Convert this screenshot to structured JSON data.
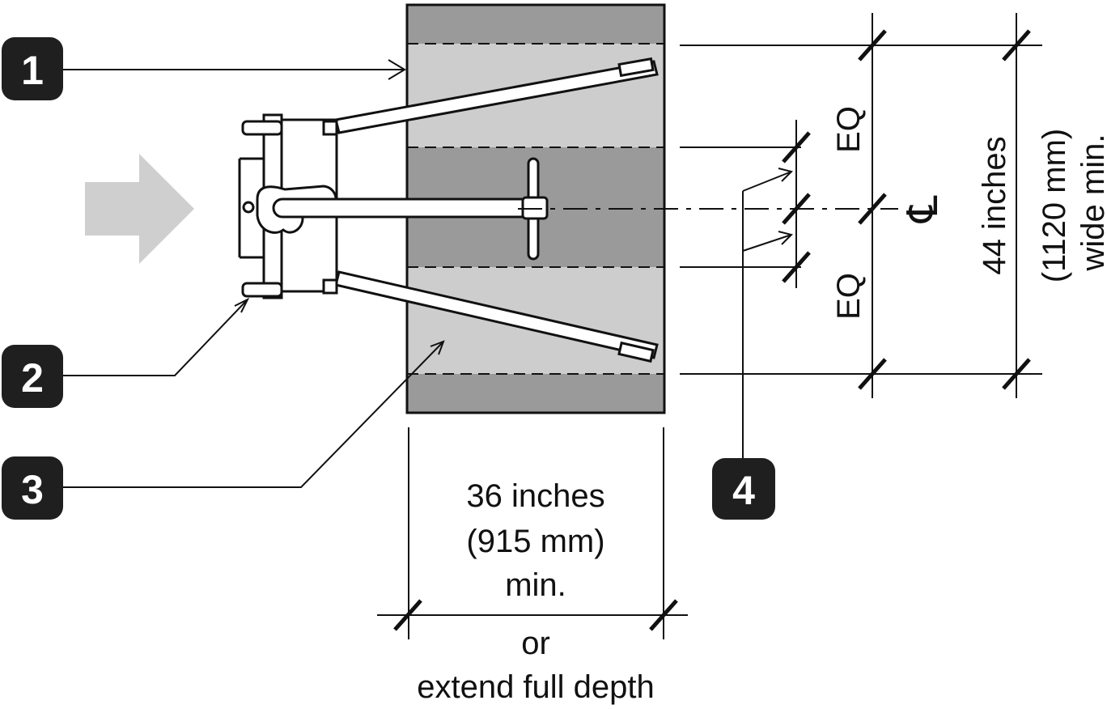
{
  "callouts": [
    {
      "number": "1"
    },
    {
      "number": "2"
    },
    {
      "number": "3"
    },
    {
      "number": "4"
    }
  ],
  "dimensions": {
    "depth": {
      "line1": "36 inches",
      "line2": "(915 mm)",
      "line3": "min.",
      "line4": "or",
      "line5": "extend full depth"
    },
    "width": {
      "line1": "44 inches",
      "line2": "(1120 mm)",
      "line3": "wide min."
    },
    "eq_upper": "EQ",
    "eq_lower": "EQ",
    "centerline_symbol": "℄"
  },
  "colors": {
    "dark_band": "#9a9a9a",
    "light_band": "#cdcdcd",
    "badge": "#1f1f1f",
    "arrow": "#cfcfcf",
    "line": "#111111"
  }
}
